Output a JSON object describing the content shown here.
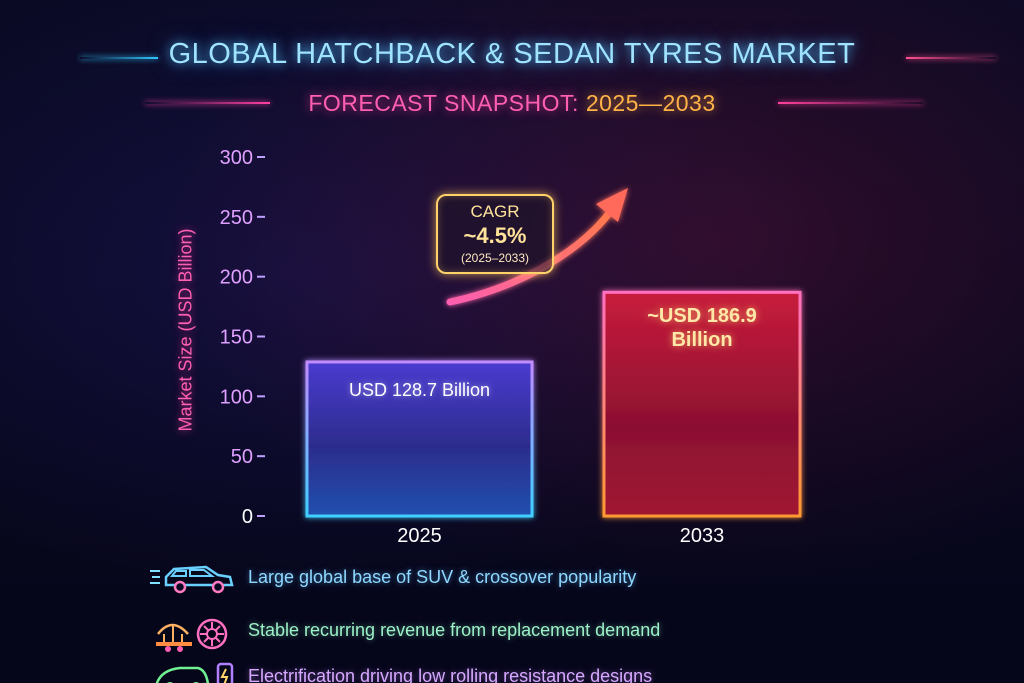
{
  "title": "GLOBAL HATCHBACK & SEDAN TYRES MARKET",
  "subtitle_prefix": "FORECAST SNAPSHOT:",
  "subtitle_years": "2025—2033",
  "colors": {
    "bar_2025": "#3a2fa0",
    "bar_2033": "#c0203a",
    "axis": "#c0a0ff",
    "accent_pink": "#ff5fb0",
    "accent_gold": "#ffd36a"
  },
  "cagr": {
    "label": "CAGR",
    "value": "~4.5%",
    "period": "(2025–2033)"
  },
  "bar_labels": {
    "bar_2025": "USD 128.7 Billion",
    "bar_2033_line1": "~USD 186.9",
    "bar_2033_line2": "Billion"
  },
  "chart_data": {
    "type": "bar",
    "categories": [
      "2025",
      "2033"
    ],
    "values": [
      128.7,
      186.9
    ],
    "title": "GLOBAL HATCHBACK & SEDAN TYRES MARKET",
    "subtitle": "FORECAST SNAPSHOT: 2025—2033",
    "xlabel": "",
    "ylabel": "Market Size (USD Billion)",
    "ylim": [
      0,
      300
    ],
    "yticks": [
      0,
      50,
      100,
      150,
      200,
      250,
      300
    ],
    "grid": false,
    "legend": "none"
  },
  "features": [
    {
      "icon": "car-icon",
      "text": "Large global base of SUV & crossover popularity"
    },
    {
      "icon": "tyre-service-icon",
      "text": "Stable recurring revenue from replacement demand"
    },
    {
      "icon": "ev-charging-icon",
      "text": "Electrification driving low rolling resistance designs"
    }
  ]
}
